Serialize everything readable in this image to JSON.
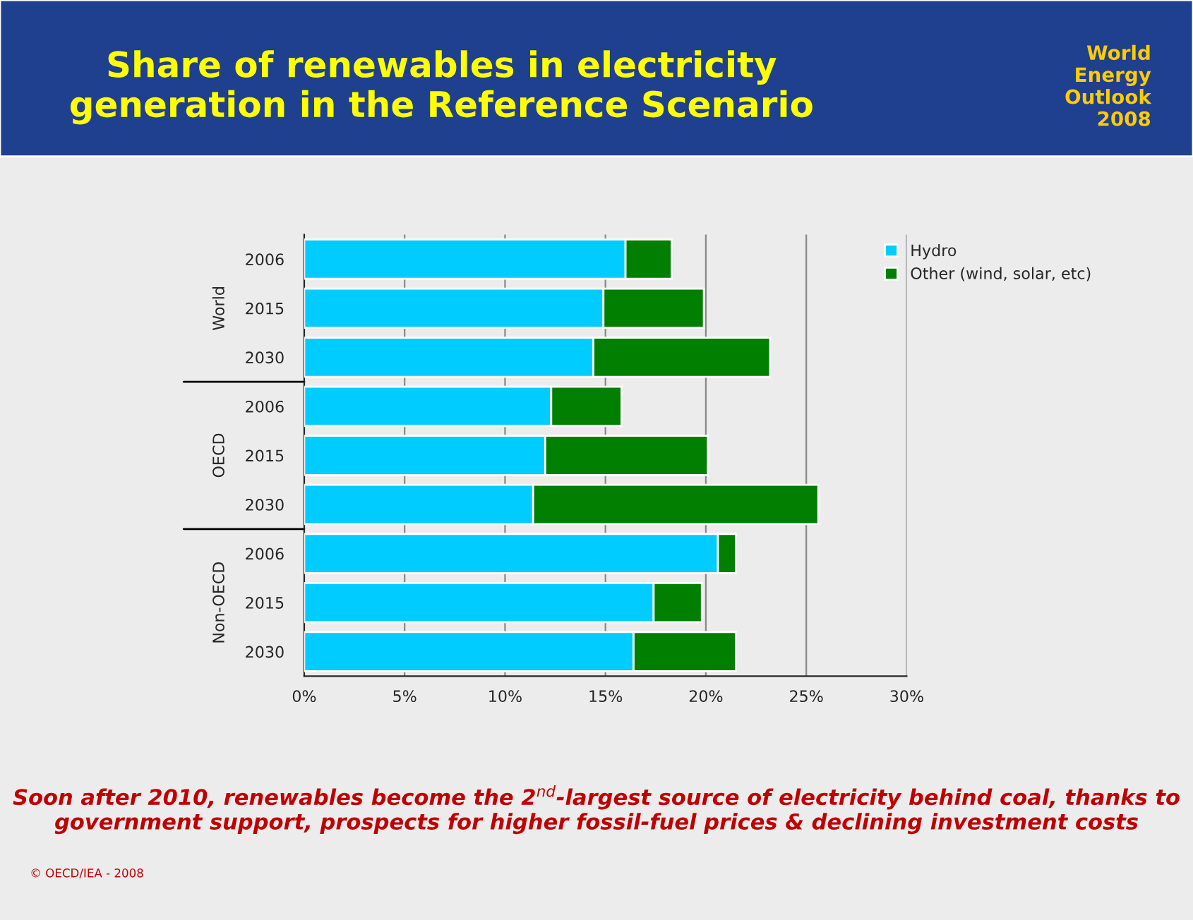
{
  "chart_data": {
    "type": "bar",
    "orientation": "horizontal",
    "stacked": true,
    "title": "Share of renewables in electricity generation in the Reference Scenario",
    "categories": [
      "2006",
      "2015",
      "2030",
      "2006",
      "2015",
      "2030",
      "2006",
      "2015",
      "2030"
    ],
    "series": [
      {
        "name": "Hydro",
        "color": "#00ccff",
        "values": [
          16.0,
          14.9,
          14.4,
          12.3,
          12.0,
          11.4,
          20.6,
          17.4,
          16.4
        ]
      },
      {
        "name": "Other (wind, solar, etc)",
        "color": "#007f00",
        "values": [
          2.3,
          5.0,
          8.8,
          3.5,
          8.1,
          14.2,
          0.9,
          2.4,
          5.1
        ]
      }
    ],
    "xlim": [
      0,
      30
    ],
    "xticks": [
      {
        "value": 0,
        "label": "0%"
      },
      {
        "value": 5,
        "label": "5%"
      },
      {
        "value": 10,
        "label": "10%"
      },
      {
        "value": 15,
        "label": "15%"
      },
      {
        "value": 20,
        "label": "20%"
      },
      {
        "value": 25,
        "label": "25%"
      },
      {
        "value": 30,
        "label": "30%"
      }
    ],
    "grid": "x",
    "legend": "top right",
    "annotations": [
      "World",
      "OECD",
      "Non-OECD",
      "World Energy Outlook 2008",
      "Soon after 2010, renewables become the 2$^{nd}$-largest source of electricity behind coal, thanks to government support, prospects for higher fossil-fuel prices & declining investment costs",
      "© OECD/IEA - 2008"
    ]
  }
}
